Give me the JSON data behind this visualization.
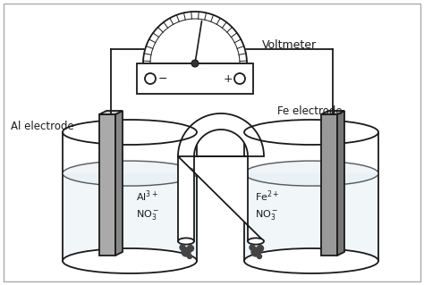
{
  "line_color": "#1a1a1a",
  "electrode_color_left": "#909090",
  "electrode_color_right": "#808080",
  "voltmeter_label": "Voltmeter",
  "left_electrode_label": "Al electrode",
  "right_electrode_label": "Fe electrode",
  "solution_color": "#e8f0f4",
  "lw": 1.3
}
